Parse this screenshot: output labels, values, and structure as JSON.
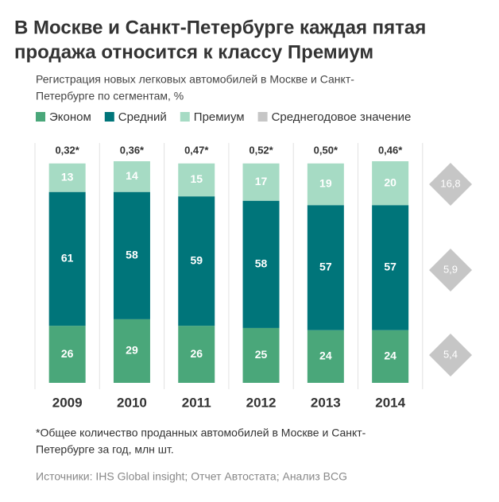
{
  "chart_data": {
    "type": "stacked-bar",
    "title": [
      "В Москве и Санкт-Петербурге каждая пятая",
      "продажа относится к классу Премиум"
    ],
    "subtitle": [
      "Регистрация новых легковых автомобилей в Москве и Санкт-",
      "Петербурге по сегментам, %"
    ],
    "categories": [
      "2009",
      "2010",
      "2011",
      "2012",
      "2013",
      "2014"
    ],
    "annotations": [
      "0,32*",
      "0,36*",
      "0,47*",
      "0,52*",
      "0,50*",
      "0,46*"
    ],
    "series": [
      {
        "name": "Эконом",
        "color": "#4aa77a",
        "values": [
          26,
          29,
          26,
          25,
          24,
          24
        ]
      },
      {
        "name": "Средний",
        "color": "#00757a",
        "values": [
          61,
          58,
          59,
          58,
          57,
          57
        ]
      },
      {
        "name": "Премиум",
        "color": "#a6dbc4",
        "values": [
          13,
          14,
          15,
          17,
          19,
          20
        ]
      }
    ],
    "averages": {
      "name": "Среднегодовое значение",
      "color": "#c6c6c6",
      "values": [
        5.4,
        5.9,
        16.8
      ],
      "value_labels": [
        "5,4",
        "5,9",
        "16,8"
      ]
    },
    "ylim": [
      0,
      101
    ],
    "footnote": [
      "*Общее количество проданных автомобилей в Москве и Санкт-",
      "Петербурге за год, млн шт."
    ],
    "source": "Источники: IHS Global insight; Отчет Автостата; Анализ BCG"
  }
}
